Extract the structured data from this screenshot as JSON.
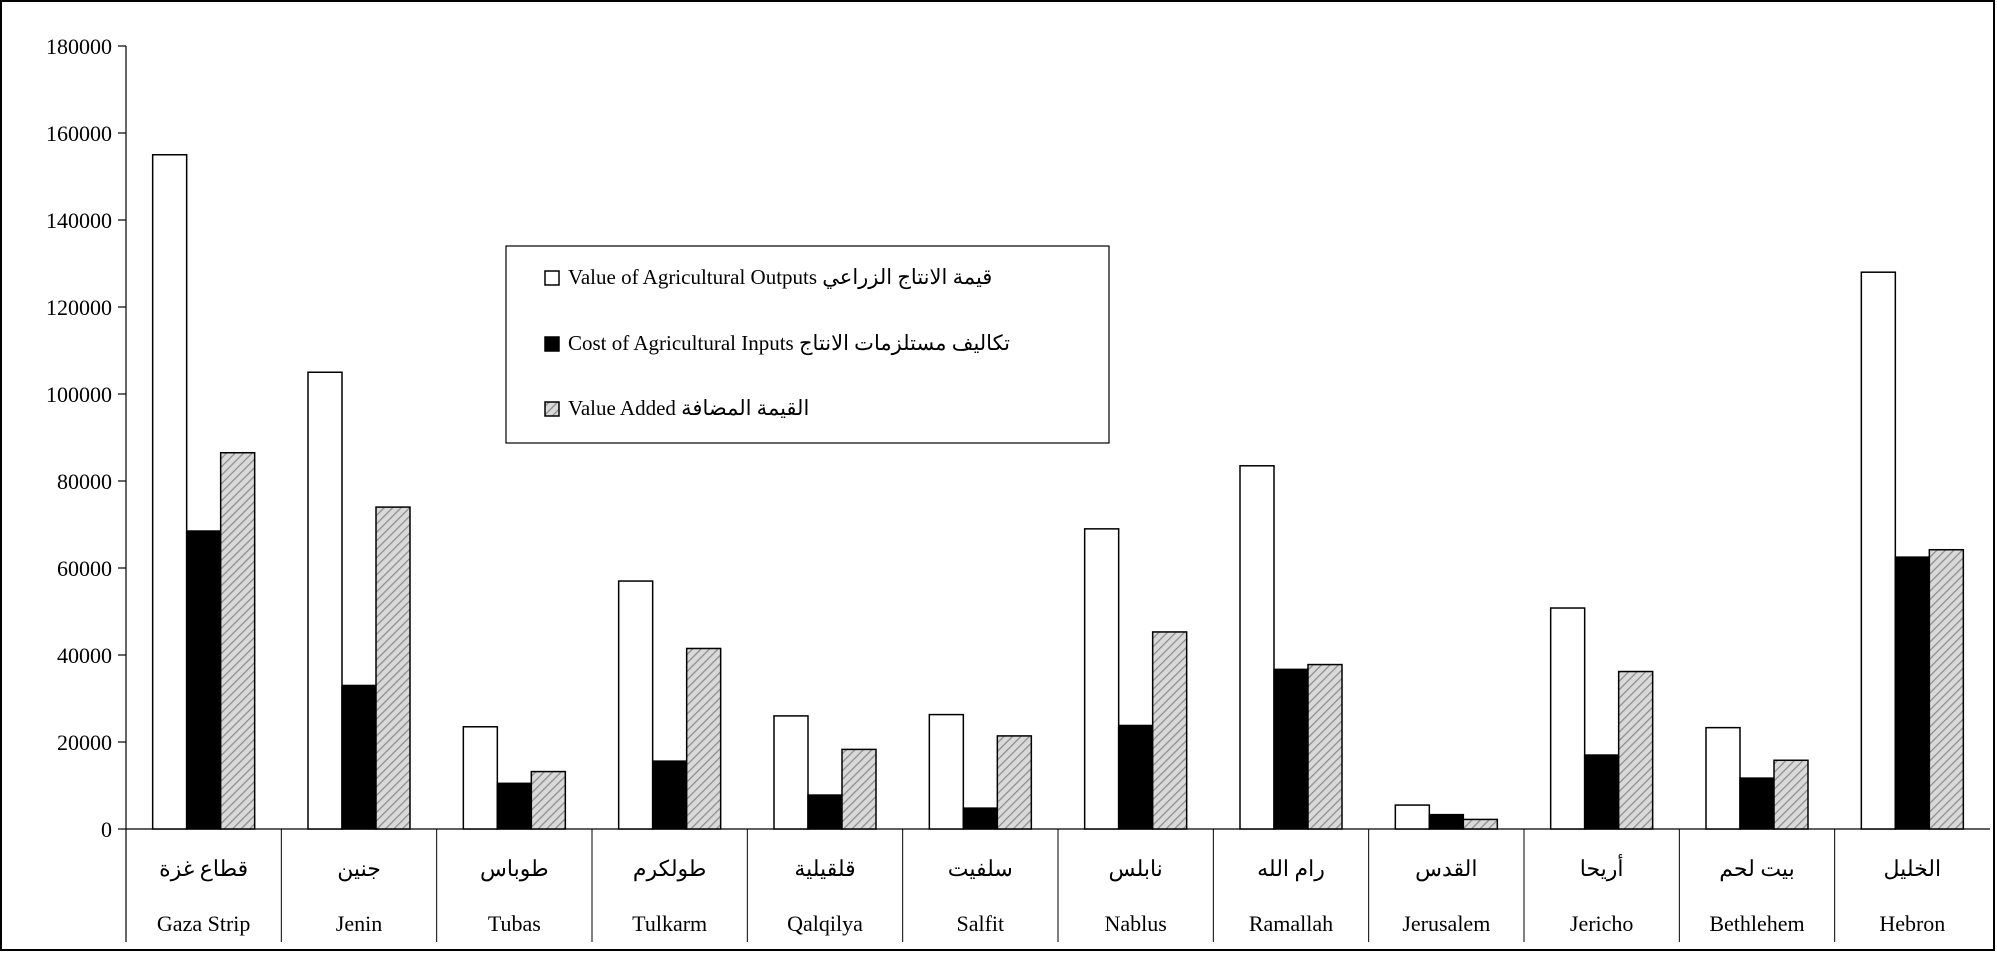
{
  "colors": {
    "outputs_fill": "#ffffff",
    "inputs_fill": "#000000",
    "value_added_hatch_bg": "#d9d9d9",
    "value_added_hatch_line": "#8c8c8c",
    "stroke": "#000000"
  },
  "chart_data": {
    "type": "bar",
    "title": "",
    "xlabel": "",
    "ylabel": "",
    "ylim": [
      0,
      180000
    ],
    "yticks": [
      "0",
      "20000",
      "40000",
      "60000",
      "80000",
      "100000",
      "120000",
      "140000",
      "160000",
      "180000"
    ],
    "grid": false,
    "legend_position": "inside-upper-center",
    "categories_ar": [
      "قطاع غزة",
      "جنين",
      "طوباس",
      "طولكرم",
      "قلقيلية",
      "سلفيت",
      "نابلس",
      "رام الله",
      "القدس",
      "أريحا",
      "بيت لحم",
      "الخليل"
    ],
    "categories": [
      "Gaza Strip",
      "Jenin",
      "Tubas",
      "Tulkarm",
      "Qalqilya",
      "Salfit",
      "Nablus",
      "Ramallah",
      "Jerusalem",
      "Jericho",
      "Bethlehem",
      "Hebron"
    ],
    "series": [
      {
        "name": "Value of Agricultural Outputs  قيمة الانتاج الزراعي",
        "values": [
          155000,
          105000,
          23500,
          57000,
          26000,
          26300,
          69000,
          83500,
          5500,
          50800,
          23300,
          128000
        ]
      },
      {
        "name": "Cost of Agricultural Inputs تكاليف مستلزمات الانتاج",
        "values": [
          68500,
          33000,
          10500,
          15600,
          7800,
          4800,
          23800,
          36700,
          3300,
          17000,
          11700,
          62500
        ]
      },
      {
        "name": "Value Added القيمة المضافة",
        "values": [
          86500,
          74000,
          13200,
          41500,
          18300,
          21400,
          45300,
          37800,
          2200,
          36200,
          15800,
          64200
        ]
      }
    ]
  }
}
